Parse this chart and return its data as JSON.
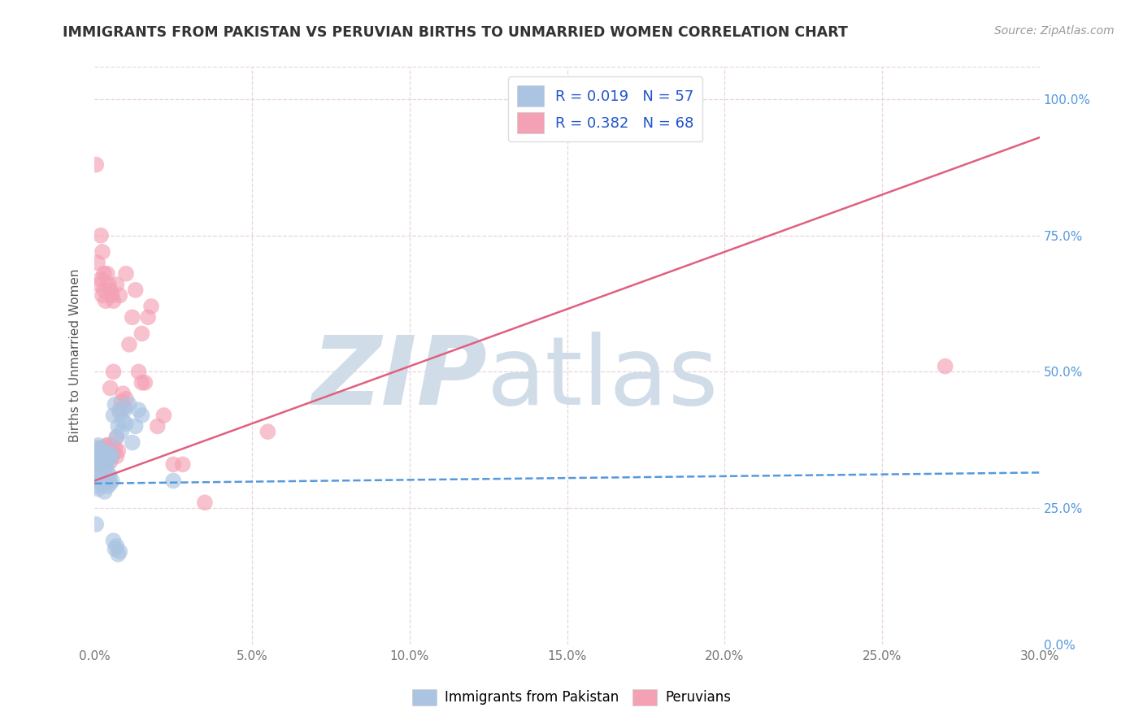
{
  "title": "IMMIGRANTS FROM PAKISTAN VS PERUVIAN BIRTHS TO UNMARRIED WOMEN CORRELATION CHART",
  "source": "Source: ZipAtlas.com",
  "xlabel_ticks": [
    "0.0%",
    "5.0%",
    "10.0%",
    "15.0%",
    "20.0%",
    "25.0%",
    "30.0%"
  ],
  "xlabel_vals": [
    0.0,
    5.0,
    10.0,
    15.0,
    20.0,
    25.0,
    30.0
  ],
  "ylabel": "Births to Unmarried Women",
  "ylabel_ticks": [
    "0.0%",
    "25.0%",
    "50.0%",
    "75.0%",
    "100.0%"
  ],
  "ylabel_vals": [
    0.0,
    25.0,
    50.0,
    75.0,
    100.0
  ],
  "xlim": [
    0.0,
    30.0
  ],
  "ylim": [
    0.0,
    106.0
  ],
  "blue_label": "Immigrants from Pakistan",
  "pink_label": "Peruvians",
  "blue_R": 0.019,
  "blue_N": 57,
  "pink_R": 0.382,
  "pink_N": 68,
  "blue_color": "#aac4e2",
  "pink_color": "#f4a0b5",
  "blue_line_color": "#5599dd",
  "pink_line_color": "#e06080",
  "legend_R_color": "#2255cc",
  "grid_color": "#e8d5dc",
  "background_color": "#ffffff",
  "title_color": "#333333",
  "source_color": "#999999",
  "blue_scatter_x": [
    0.05,
    0.08,
    0.1,
    0.12,
    0.15,
    0.18,
    0.2,
    0.22,
    0.25,
    0.28,
    0.3,
    0.32,
    0.35,
    0.38,
    0.4,
    0.42,
    0.45,
    0.48,
    0.5,
    0.55,
    0.6,
    0.65,
    0.7,
    0.75,
    0.8,
    0.85,
    0.9,
    0.95,
    1.0,
    1.1,
    1.2,
    1.3,
    1.4,
    1.5,
    0.05,
    0.08,
    0.1,
    0.12,
    0.15,
    0.18,
    0.2,
    0.22,
    0.25,
    0.28,
    0.3,
    0.35,
    0.4,
    0.45,
    0.5,
    0.55,
    0.6,
    0.65,
    0.7,
    0.75,
    0.8,
    0.05,
    2.5
  ],
  "blue_scatter_y": [
    30.0,
    29.0,
    31.5,
    28.5,
    32.0,
    30.0,
    31.0,
    29.5,
    33.0,
    30.5,
    31.0,
    28.0,
    32.5,
    30.0,
    31.5,
    29.0,
    30.0,
    31.0,
    29.5,
    30.0,
    42.0,
    44.0,
    38.0,
    40.0,
    42.5,
    39.0,
    41.0,
    43.0,
    40.5,
    44.0,
    37.0,
    40.0,
    43.0,
    42.0,
    35.0,
    36.0,
    34.5,
    36.5,
    35.5,
    34.0,
    35.0,
    34.0,
    33.5,
    35.5,
    34.0,
    35.0,
    33.0,
    34.0,
    35.0,
    34.5,
    19.0,
    17.5,
    18.0,
    16.5,
    17.0,
    22.0,
    30.0
  ],
  "pink_scatter_x": [
    0.05,
    0.08,
    0.1,
    0.12,
    0.15,
    0.18,
    0.2,
    0.22,
    0.25,
    0.28,
    0.3,
    0.32,
    0.35,
    0.38,
    0.4,
    0.42,
    0.45,
    0.48,
    0.5,
    0.55,
    0.6,
    0.65,
    0.7,
    0.75,
    0.8,
    0.85,
    0.9,
    0.95,
    1.0,
    1.1,
    1.2,
    1.3,
    1.4,
    1.5,
    1.6,
    1.7,
    1.8,
    2.0,
    2.2,
    2.5,
    0.1,
    0.15,
    0.2,
    0.25,
    0.3,
    0.35,
    0.4,
    0.45,
    0.5,
    0.55,
    0.6,
    0.7,
    0.8,
    1.0,
    3.5,
    5.5,
    0.05,
    0.2,
    0.25,
    0.3,
    0.35,
    0.4,
    1.5,
    2.8,
    0.5,
    0.6,
    27.0,
    0.7
  ],
  "pink_scatter_y": [
    35.0,
    34.0,
    36.0,
    33.0,
    35.5,
    34.5,
    35.0,
    36.0,
    34.0,
    35.5,
    36.0,
    34.5,
    35.0,
    34.0,
    36.5,
    34.0,
    35.0,
    34.5,
    33.5,
    36.5,
    35.0,
    36.0,
    34.5,
    35.5,
    43.0,
    44.5,
    46.0,
    43.5,
    45.0,
    55.0,
    60.0,
    65.0,
    50.0,
    57.0,
    48.0,
    60.0,
    62.0,
    40.0,
    42.0,
    33.0,
    70.0,
    66.0,
    67.0,
    64.0,
    65.0,
    63.0,
    68.0,
    66.0,
    65.0,
    64.0,
    63.0,
    66.0,
    64.0,
    68.0,
    26.0,
    39.0,
    88.0,
    75.0,
    72.0,
    68.0,
    35.0,
    36.5,
    48.0,
    33.0,
    47.0,
    50.0,
    51.0,
    38.0
  ],
  "watermark_zip": "ZIP",
  "watermark_atlas": "atlas",
  "watermark_color": "#d0dde8",
  "blue_line_x0": 0.0,
  "blue_line_x1": 30.0,
  "blue_line_y0": 29.5,
  "blue_line_y1": 31.5,
  "pink_line_x0": 0.0,
  "pink_line_x1": 30.0,
  "pink_line_y0": 30.0,
  "pink_line_y1": 93.0
}
